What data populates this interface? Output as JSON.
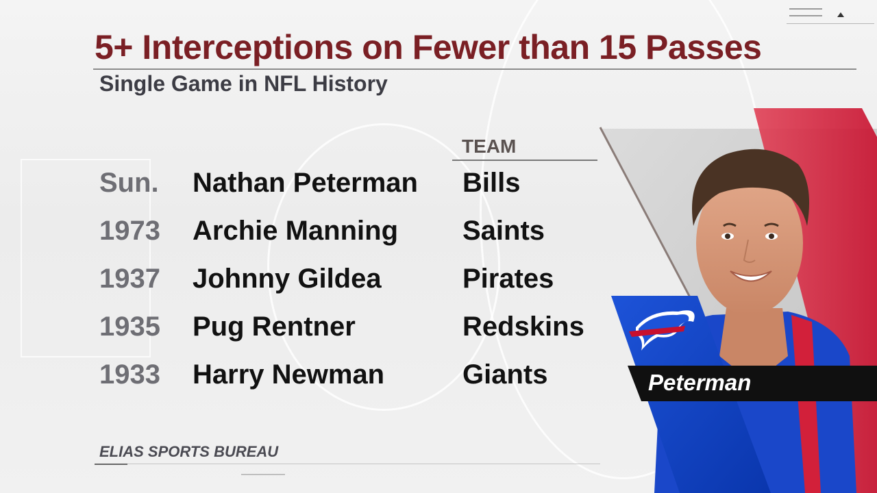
{
  "title": "5+ Interceptions on Fewer than 15 Passes",
  "subtitle": "Single Game in NFL History",
  "table": {
    "team_header": "TEAM",
    "rows": [
      {
        "year": "Sun.",
        "player": "Nathan Peterman",
        "team": "Bills"
      },
      {
        "year": "1973",
        "player": "Archie Manning",
        "team": "Saints"
      },
      {
        "year": "1937",
        "player": "Johnny Gildea",
        "team": "Pirates"
      },
      {
        "year": "1935",
        "player": "Pug Rentner",
        "team": "Redskins"
      },
      {
        "year": "1933",
        "player": "Harry Newman",
        "team": "Giants"
      }
    ]
  },
  "source": "ELIAS SPORTS BUREAU",
  "feature": {
    "player_label": "Peterman",
    "team_logo": "buffalo-bills-logo",
    "photo": "player-headshot"
  },
  "colors": {
    "title": "#7a1f24",
    "bills_blue": "#0d3fc4",
    "bills_red": "#c8102e"
  }
}
